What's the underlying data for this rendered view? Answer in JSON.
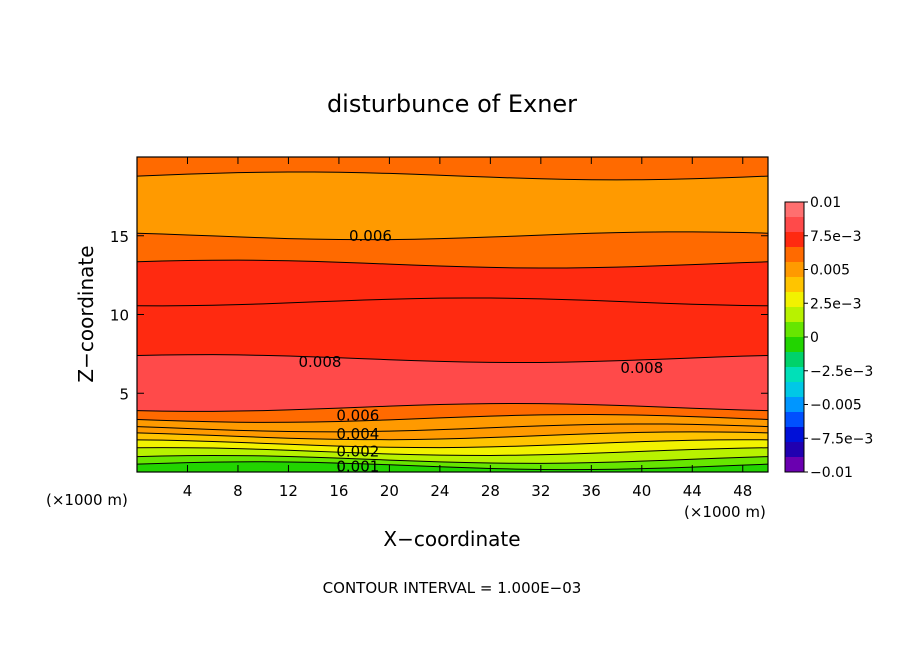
{
  "chart_data": {
    "type": "contour",
    "title": "disturbunce of Exner",
    "xlabel": "X−coordinate",
    "ylabel": "Z−coordinate",
    "x_unit_label": "(×1000 m)",
    "x_unit_label_right": "(×1000 m)",
    "xlim": [
      0,
      50
    ],
    "ylim": [
      0,
      20
    ],
    "x_ticks": [
      4,
      8,
      12,
      16,
      20,
      24,
      28,
      32,
      36,
      40,
      44,
      48
    ],
    "y_ticks": [
      5,
      10,
      15
    ],
    "footer": "CONTOUR INTERVAL = 1.000E−03",
    "contour_interval": 0.001,
    "levels": [
      {
        "z_top": 0.4,
        "value": 0.0
      },
      {
        "z_top": 0.8,
        "value": 0.0005
      },
      {
        "z_top": 1.3,
        "value": 0.0015
      },
      {
        "z_top": 1.8,
        "value": 0.0025
      },
      {
        "z_top": 2.3,
        "value": 0.0035
      },
      {
        "z_top": 2.8,
        "value": 0.0045
      },
      {
        "z_top": 3.4,
        "value": 0.0055
      },
      {
        "z_top": 4.1,
        "value": 0.0065
      },
      {
        "z_top": 7.2,
        "value": 0.0085
      },
      {
        "z_top": 10.8,
        "value": 0.0075
      },
      {
        "z_top": 13.2,
        "value": 0.0068
      },
      {
        "z_top": 15.0,
        "value": 0.0062
      },
      {
        "z_top": 18.8,
        "value": 0.0055
      },
      {
        "z_top": 20.0,
        "value": 0.0065
      }
    ],
    "contour_labels": [
      {
        "text": "0.006",
        "x": 18.5,
        "z": 15.0
      },
      {
        "text": "0.008",
        "x": 14.5,
        "z": 7.0
      },
      {
        "text": "0.008",
        "x": 40.0,
        "z": 6.6
      },
      {
        "text": "0.006",
        "x": 17.5,
        "z": 3.6
      },
      {
        "text": "0.004",
        "x": 17.5,
        "z": 2.4
      },
      {
        "text": "0.002",
        "x": 17.5,
        "z": 1.3
      },
      {
        "text": "0.001",
        "x": 17.5,
        "z": 0.35
      }
    ],
    "colorbar": {
      "ticks": [
        "0.01",
        "7.5e−3",
        "0.005",
        "2.5e−3",
        "0",
        "−2.5e−3",
        "−0.005",
        "−7.5e−3",
        "−0.01"
      ],
      "colors": [
        "#ff6f6f",
        "#ff4a4a",
        "#ff2a10",
        "#ff6a00",
        "#ff9a00",
        "#ffc400",
        "#f2f200",
        "#b8f200",
        "#66e600",
        "#22d400",
        "#00d26a",
        "#00e0b8",
        "#00c8e6",
        "#0096ff",
        "#0050ff",
        "#0010d8",
        "#2000b0",
        "#6a00b0"
      ]
    }
  }
}
